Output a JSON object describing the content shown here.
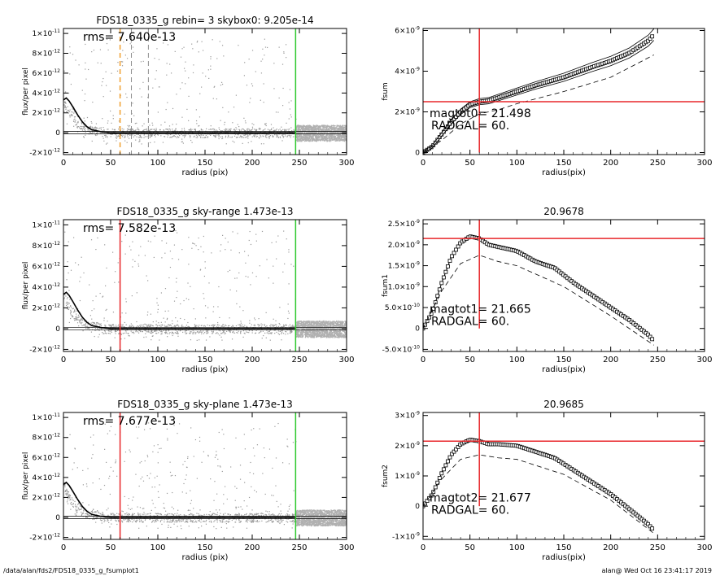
{
  "footer": {
    "path": "/data/alan/fds2/FDS18_0335_g_fsumplot1",
    "stamp": "alan@  Wed Oct 16 23:41:17 2019"
  },
  "colors": {
    "red": "#e8262a",
    "green": "#2ec92e",
    "orange": "#f0a030",
    "gray": "#8f8f8f"
  },
  "chart_data": [
    {
      "type": "scatter",
      "panel": "profile-top",
      "title": "FDS18_0335_g rebin= 3    skybox0:  9.205e-14",
      "xlabel": "radius (pix)",
      "ylabel": "flux/per pixel",
      "xlim": [
        0,
        300
      ],
      "ylim": [
        -2.2e-12,
        1.05e-11
      ],
      "xticks": [
        "0",
        "50",
        "100",
        "150",
        "200",
        "250",
        "300"
      ],
      "yticks": [
        {
          "value": -2e-12,
          "label": "-2×10",
          "exp": "-12"
        },
        {
          "value": 0,
          "label": "0",
          "exp": ""
        },
        {
          "value": 2e-12,
          "label": "2×10",
          "exp": "-12"
        },
        {
          "value": 4e-12,
          "label": "4×10",
          "exp": "-12"
        },
        {
          "value": 6e-12,
          "label": "6×10",
          "exp": "-12"
        },
        {
          "value": 8e-12,
          "label": "8×10",
          "exp": "-12"
        },
        {
          "value": 1e-11,
          "label": "1×10",
          "exp": "-11"
        }
      ],
      "annotation": "rms= 7.640e-13",
      "vlines": [
        {
          "x": 60,
          "color": "orange",
          "dash": true
        },
        {
          "x": 72,
          "color": "gray",
          "dash": true
        },
        {
          "x": 90,
          "color": "gray",
          "dash": true
        },
        {
          "x": 246,
          "color": "green",
          "dash": false
        }
      ],
      "series": [
        {
          "values": [
            [
              0,
              3.3e-12
            ],
            [
              3,
              3.5e-12
            ],
            [
              6,
              3.2e-12
            ],
            [
              10,
              2.6e-12
            ],
            [
              15,
              1.8e-12
            ],
            [
              20,
              1.1e-12
            ],
            [
              25,
              6e-13
            ],
            [
              30,
              3e-13
            ],
            [
              40,
              1e-13
            ],
            [
              50,
              0
            ],
            [
              100,
              0
            ],
            [
              150,
              0
            ],
            [
              200,
              0
            ],
            [
              246,
              0
            ]
          ]
        }
      ]
    },
    {
      "type": "line",
      "panel": "growth-top",
      "title": "",
      "xlabel": "radius(pix)",
      "ylabel": "fsum",
      "xlim": [
        0,
        300
      ],
      "ylim": [
        -1e-10,
        6.1e-09
      ],
      "xticks": [
        "0",
        "50",
        "100",
        "150",
        "200",
        "250",
        "300"
      ],
      "yticks": [
        {
          "value": 0,
          "label": "0",
          "exp": ""
        },
        {
          "value": 2e-09,
          "label": "2×10",
          "exp": "-9"
        },
        {
          "value": 4e-09,
          "label": "4×10",
          "exp": "-9"
        },
        {
          "value": 6e-09,
          "label": "6×10",
          "exp": "-9"
        }
      ],
      "annotations": [
        "magtot0=  21.498",
        "RADGAL=    60."
      ],
      "hline": 2.5e-09,
      "vline": 60,
      "series": [
        {
          "values": [
            [
              0,
              0
            ],
            [
              10,
              3e-10
            ],
            [
              20,
              9e-10
            ],
            [
              30,
              1.5e-09
            ],
            [
              40,
              2e-09
            ],
            [
              50,
              2.35e-09
            ],
            [
              60,
              2.5e-09
            ],
            [
              70,
              2.55e-09
            ],
            [
              80,
              2.7e-09
            ],
            [
              100,
              3e-09
            ],
            [
              120,
              3.3e-09
            ],
            [
              150,
              3.7e-09
            ],
            [
              180,
              4.2e-09
            ],
            [
              200,
              4.5e-09
            ],
            [
              220,
              4.9e-09
            ],
            [
              240,
              5.5e-09
            ],
            [
              246,
              5.8e-09
            ]
          ]
        },
        {
          "values": [
            [
              0,
              0
            ],
            [
              20,
              6e-10
            ],
            [
              40,
              1.4e-09
            ],
            [
              60,
              1.9e-09
            ],
            [
              80,
              2.1e-09
            ],
            [
              100,
              2.4e-09
            ],
            [
              150,
              3e-09
            ],
            [
              200,
              3.7e-09
            ],
            [
              246,
              4.8e-09
            ]
          ]
        }
      ]
    },
    {
      "type": "scatter",
      "panel": "profile-middle",
      "title": "FDS18_0335_g sky-range  1.473e-13",
      "xlabel": "radius (pix)",
      "ylabel": "flux/per pixel",
      "xlim": [
        0,
        300
      ],
      "ylim": [
        -2.2e-12,
        1.05e-11
      ],
      "xticks": [
        "0",
        "50",
        "100",
        "150",
        "200",
        "250",
        "300"
      ],
      "yticks": [
        {
          "value": -2e-12,
          "label": "-2×10",
          "exp": "-12"
        },
        {
          "value": 0,
          "label": "0",
          "exp": ""
        },
        {
          "value": 2e-12,
          "label": "2×10",
          "exp": "-12"
        },
        {
          "value": 4e-12,
          "label": "4×10",
          "exp": "-12"
        },
        {
          "value": 6e-12,
          "label": "6×10",
          "exp": "-12"
        },
        {
          "value": 8e-12,
          "label": "8×10",
          "exp": "-12"
        },
        {
          "value": 1e-11,
          "label": "1×10",
          "exp": "-11"
        }
      ],
      "annotation": "rms= 7.582e-13",
      "vlines": [
        {
          "x": 60,
          "color": "red",
          "dash": false
        },
        {
          "x": 246,
          "color": "green",
          "dash": false
        }
      ],
      "series": [
        {
          "values": [
            [
              0,
              3.3e-12
            ],
            [
              3,
              3.5e-12
            ],
            [
              6,
              3.2e-12
            ],
            [
              10,
              2.6e-12
            ],
            [
              15,
              1.8e-12
            ],
            [
              20,
              1.1e-12
            ],
            [
              25,
              6e-13
            ],
            [
              30,
              3e-13
            ],
            [
              40,
              1e-13
            ],
            [
              50,
              0
            ],
            [
              100,
              0
            ],
            [
              150,
              0
            ],
            [
              200,
              0
            ],
            [
              246,
              0
            ]
          ]
        }
      ]
    },
    {
      "type": "line",
      "panel": "growth-middle",
      "title": "20.9678",
      "xlabel": "radius(pix)",
      "ylabel": "fsum1",
      "xlim": [
        0,
        300
      ],
      "ylim": [
        -5.5e-10,
        2.6e-09
      ],
      "xticks": [
        "0",
        "50",
        "100",
        "150",
        "200",
        "250",
        "300"
      ],
      "yticks": [
        {
          "value": -5e-10,
          "label": "-5.0×10",
          "exp": "-10"
        },
        {
          "value": 0,
          "label": "0",
          "exp": ""
        },
        {
          "value": 5e-10,
          "label": "5.0×10",
          "exp": "-10"
        },
        {
          "value": 1e-09,
          "label": "1.0×10",
          "exp": "-9"
        },
        {
          "value": 1.5e-09,
          "label": "1.5×10",
          "exp": "-9"
        },
        {
          "value": 2e-09,
          "label": "2.0×10",
          "exp": "-9"
        },
        {
          "value": 2.5e-09,
          "label": "2.5×10",
          "exp": "-9"
        }
      ],
      "annotations": [
        "magtot1=  21.665",
        "RADGAL=    60."
      ],
      "hline": 2.15e-09,
      "vline": 60,
      "series": [
        {
          "values": [
            [
              0,
              0
            ],
            [
              10,
              4e-10
            ],
            [
              20,
              1.1e-09
            ],
            [
              30,
              1.7e-09
            ],
            [
              40,
              2.05e-09
            ],
            [
              50,
              2.2e-09
            ],
            [
              60,
              2.15e-09
            ],
            [
              70,
              2e-09
            ],
            [
              80,
              1.95e-09
            ],
            [
              100,
              1.85e-09
            ],
            [
              120,
              1.6e-09
            ],
            [
              140,
              1.45e-09
            ],
            [
              160,
              1.1e-09
            ],
            [
              180,
              8e-10
            ],
            [
              200,
              5e-10
            ],
            [
              220,
              2e-10
            ],
            [
              240,
              -1.5e-10
            ],
            [
              246,
              -3e-10
            ]
          ]
        },
        {
          "values": [
            [
              0,
              0
            ],
            [
              20,
              9e-10
            ],
            [
              40,
              1.55e-09
            ],
            [
              60,
              1.75e-09
            ],
            [
              80,
              1.6e-09
            ],
            [
              100,
              1.5e-09
            ],
            [
              150,
              1e-09
            ],
            [
              200,
              3e-10
            ],
            [
              246,
              -4e-10
            ]
          ]
        }
      ]
    },
    {
      "type": "scatter",
      "panel": "profile-bottom",
      "title": "FDS18_0335_g sky-plane  1.473e-13",
      "xlabel": "radius (pix)",
      "ylabel": "flux/per pixel",
      "xlim": [
        0,
        300
      ],
      "ylim": [
        -2.2e-12,
        1.05e-11
      ],
      "xticks": [
        "0",
        "50",
        "100",
        "150",
        "200",
        "250",
        "300"
      ],
      "yticks": [
        {
          "value": -2e-12,
          "label": "-2×10",
          "exp": "-12"
        },
        {
          "value": 0,
          "label": "0",
          "exp": ""
        },
        {
          "value": 2e-12,
          "label": "2×10",
          "exp": "-12"
        },
        {
          "value": 4e-12,
          "label": "4×10",
          "exp": "-12"
        },
        {
          "value": 6e-12,
          "label": "6×10",
          "exp": "-12"
        },
        {
          "value": 8e-12,
          "label": "8×10",
          "exp": "-12"
        },
        {
          "value": 1e-11,
          "label": "1×10",
          "exp": "-11"
        }
      ],
      "annotation": "rms= 7.677e-13",
      "vlines": [
        {
          "x": 60,
          "color": "red",
          "dash": false
        },
        {
          "x": 246,
          "color": "green",
          "dash": false
        }
      ],
      "series": [
        {
          "values": [
            [
              0,
              3.3e-12
            ],
            [
              3,
              3.5e-12
            ],
            [
              6,
              3.2e-12
            ],
            [
              10,
              2.6e-12
            ],
            [
              15,
              1.8e-12
            ],
            [
              20,
              1.1e-12
            ],
            [
              25,
              6e-13
            ],
            [
              30,
              3e-13
            ],
            [
              40,
              1e-13
            ],
            [
              50,
              0
            ],
            [
              100,
              0
            ],
            [
              150,
              0
            ],
            [
              200,
              0
            ],
            [
              246,
              0
            ]
          ]
        }
      ]
    },
    {
      "type": "line",
      "panel": "growth-bottom",
      "title": "20.9685",
      "xlabel": "radius(pix)",
      "ylabel": "fsum2",
      "xlim": [
        0,
        300
      ],
      "ylim": [
        -1.1e-09,
        3.1e-09
      ],
      "xticks": [
        "0",
        "50",
        "100",
        "150",
        "200",
        "250",
        "300"
      ],
      "yticks": [
        {
          "value": -1e-09,
          "label": "-1×10",
          "exp": "-9"
        },
        {
          "value": 0,
          "label": "0",
          "exp": ""
        },
        {
          "value": 1e-09,
          "label": "1×10",
          "exp": "-9"
        },
        {
          "value": 2e-09,
          "label": "2×10",
          "exp": "-9"
        },
        {
          "value": 3e-09,
          "label": "3×10",
          "exp": "-9"
        }
      ],
      "annotations": [
        "magtot2=  21.677",
        "RADGAL=    60."
      ],
      "hline": 2.15e-09,
      "vline": 60,
      "series": [
        {
          "values": [
            [
              0,
              0
            ],
            [
              10,
              4e-10
            ],
            [
              20,
              1.1e-09
            ],
            [
              30,
              1.7e-09
            ],
            [
              40,
              2.05e-09
            ],
            [
              50,
              2.2e-09
            ],
            [
              60,
              2.15e-09
            ],
            [
              70,
              2.05e-09
            ],
            [
              80,
              2.05e-09
            ],
            [
              100,
              2e-09
            ],
            [
              120,
              1.8e-09
            ],
            [
              140,
              1.6e-09
            ],
            [
              160,
              1.2e-09
            ],
            [
              180,
              8e-10
            ],
            [
              200,
              4e-10
            ],
            [
              220,
              -1e-10
            ],
            [
              240,
              -6e-10
            ],
            [
              246,
              -8e-10
            ]
          ]
        },
        {
          "values": [
            [
              0,
              0
            ],
            [
              20,
              9e-10
            ],
            [
              40,
              1.55e-09
            ],
            [
              60,
              1.7e-09
            ],
            [
              80,
              1.6e-09
            ],
            [
              100,
              1.55e-09
            ],
            [
              150,
              1.05e-09
            ],
            [
              200,
              2e-10
            ],
            [
              246,
              -9e-10
            ]
          ]
        }
      ]
    }
  ]
}
